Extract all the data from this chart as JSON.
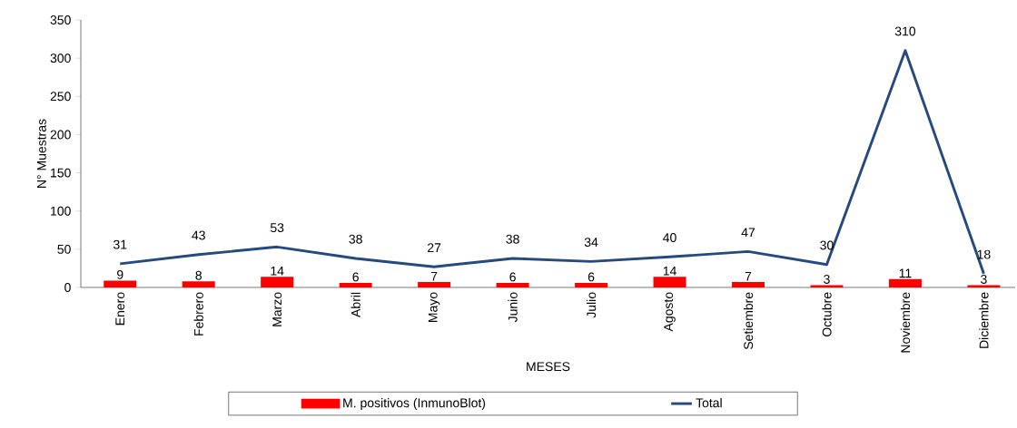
{
  "chart_data": {
    "type": "bar",
    "xlabel": "MESES",
    "ylabel": "N° Muestras",
    "categories": [
      "Enero",
      "Febrero",
      "Marzo",
      "Abril",
      "Mayo",
      "Junio",
      "Julio",
      "Agosto",
      "Setiembre",
      "Octubre",
      "Noviembre",
      "Diciembre"
    ],
    "series": [
      {
        "name": "M. positivos (InmunoBlot)",
        "color": "#ff0000",
        "values": [
          9,
          8,
          14,
          6,
          7,
          6,
          6,
          14,
          7,
          3,
          11,
          3
        ]
      },
      {
        "name": "Total",
        "type": "line",
        "color": "#254a7f",
        "values": [
          31,
          43,
          53,
          38,
          27,
          38,
          34,
          40,
          47,
          30,
          310,
          18
        ]
      }
    ],
    "ylim": [
      0,
      350
    ],
    "yticks": [
      0,
      50,
      100,
      150,
      200,
      250,
      300,
      350
    ],
    "data_labels": true,
    "legend": "bottom"
  }
}
